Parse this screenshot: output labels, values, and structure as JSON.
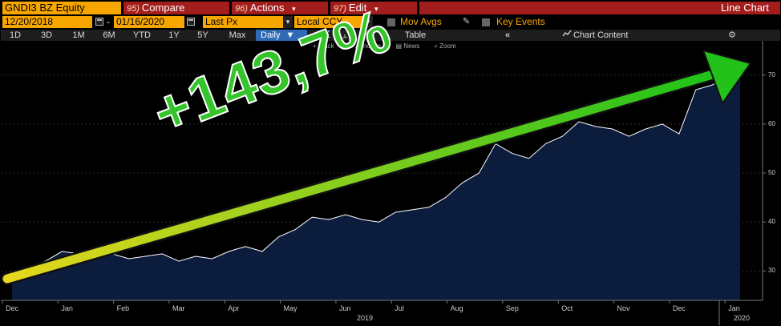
{
  "header": {
    "ticker": "GNDI3 BZ Equity",
    "compare_num": "95)",
    "compare_label": "Compare",
    "actions_num": "96)",
    "actions_label": "Actions",
    "edit_num": "97)",
    "edit_label": "Edit",
    "chart_type": "Line Chart",
    "accent": "#f7a600",
    "menu_color": "#a41d1d"
  },
  "controls": {
    "start_date": "12/20/2018",
    "end_date": "01/16/2020",
    "field": "Last Px",
    "currency": "Local CCY",
    "mov_avgs": "Mov Avgs",
    "key_events": "Key Events"
  },
  "toolbar": {
    "ranges": [
      "1D",
      "3D",
      "1M",
      "6M",
      "YTD",
      "1Y",
      "5Y",
      "Max"
    ],
    "frequency": "Daily",
    "table": "Table",
    "chart_content": "Chart Content"
  },
  "subtools": {
    "track": "Track",
    "annotate": "Annotate",
    "news": "News",
    "zoom": "Zoom"
  },
  "annotation": {
    "text": "+143,7%",
    "arrow_color": "#22c21a"
  },
  "chart_data": {
    "type": "area",
    "y_ticks": [
      "70",
      "60",
      "50",
      "40",
      "30"
    ],
    "ylim": [
      24,
      77
    ],
    "x_ticks": [
      "Dec",
      "Jan",
      "Feb",
      "Mar",
      "Apr",
      "May",
      "Jun",
      "Jul",
      "Aug",
      "Sep",
      "Oct",
      "Nov",
      "Dec",
      "Jan"
    ],
    "years": [
      "2019",
      "2020"
    ],
    "x": [
      0,
      0.3,
      0.6,
      0.9,
      1.2,
      1.5,
      1.8,
      2.1,
      2.4,
      2.7,
      3.0,
      3.3,
      3.6,
      3.9,
      4.2,
      4.5,
      4.8,
      5.1,
      5.4,
      5.7,
      6.0,
      6.3,
      6.6,
      6.9,
      7.2,
      7.5,
      7.8,
      8.1,
      8.4,
      8.7,
      9.0,
      9.3,
      9.6,
      9.9,
      10.2,
      10.5,
      10.8,
      11.1,
      11.4,
      11.7,
      12.0,
      12.3,
      12.6,
      12.9,
      13.1
    ],
    "values": [
      29.5,
      30.5,
      32,
      34,
      33.5,
      33,
      33.5,
      32.5,
      33,
      33.5,
      32,
      33,
      32.5,
      34,
      35,
      34,
      37,
      38.5,
      41,
      40.5,
      41.5,
      40.5,
      40,
      42,
      42.5,
      43,
      45,
      48,
      50,
      56,
      54,
      53,
      56,
      57.5,
      60.5,
      59.5,
      59,
      57.5,
      59,
      60,
      58,
      67,
      68,
      70,
      72
    ],
    "line_color": "#ffffff",
    "fill_color": "#0b1c3c"
  }
}
